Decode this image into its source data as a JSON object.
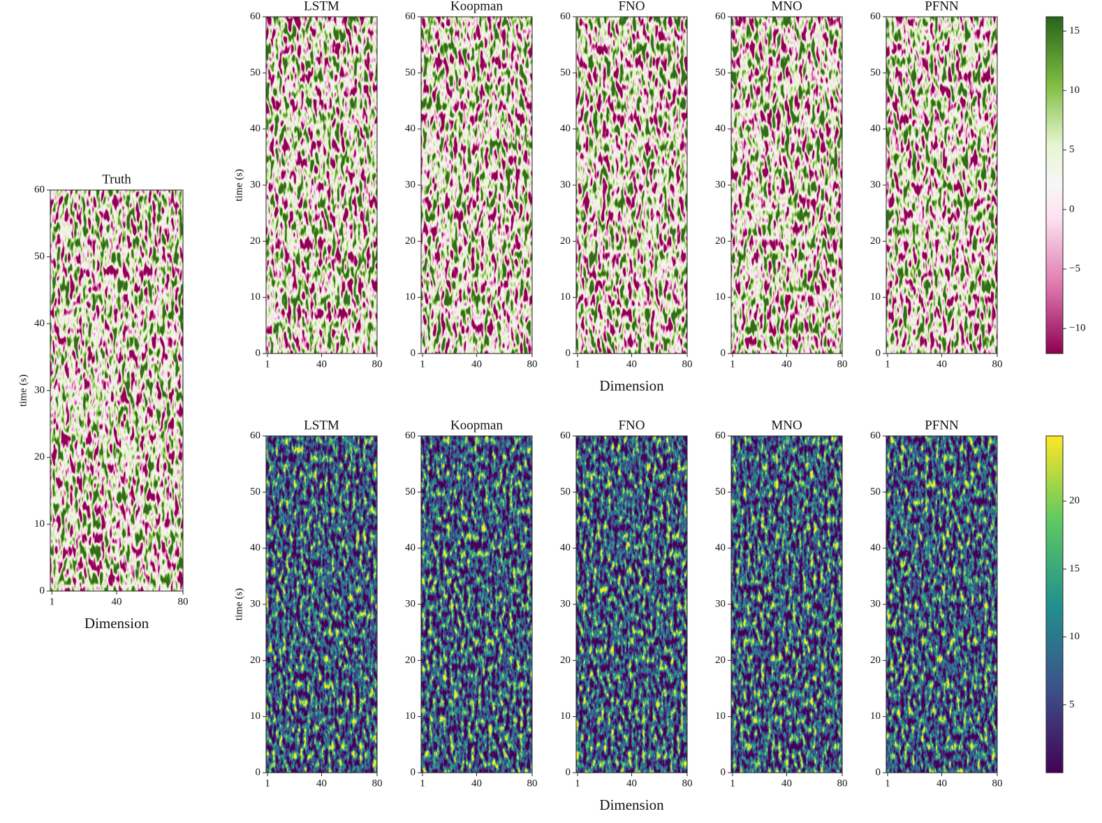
{
  "chart_data": [
    {
      "type": "heatmap",
      "title": "Truth",
      "xlabel": "Dimension",
      "ylabel": "time (s)",
      "colormap": "PiYG",
      "xlim": [
        0,
        80
      ],
      "xticks": [
        1,
        40,
        80
      ],
      "ylim": [
        0,
        60
      ],
      "yticks": [
        0,
        10,
        20,
        30,
        40,
        50,
        60
      ]
    },
    {
      "type": "heatmap",
      "title": "LSTM",
      "ylabel": "time (s)",
      "colormap": "PiYG",
      "xlim": [
        0,
        80
      ],
      "xticks": [
        1,
        40,
        80
      ],
      "ylim": [
        0,
        60
      ],
      "yticks": [
        0,
        10,
        20,
        30,
        40,
        50,
        60
      ]
    },
    {
      "type": "heatmap",
      "title": "Koopman",
      "colormap": "PiYG",
      "xlim": [
        0,
        80
      ],
      "xticks": [
        1,
        40,
        80
      ],
      "ylim": [
        0,
        60
      ],
      "yticks": [
        0,
        10,
        20,
        30,
        40,
        50,
        60
      ]
    },
    {
      "type": "heatmap",
      "title": "FNO",
      "xlabel": "Dimension",
      "colormap": "PiYG",
      "xlim": [
        0,
        80
      ],
      "xticks": [
        1,
        40,
        80
      ],
      "ylim": [
        0,
        60
      ],
      "yticks": [
        0,
        10,
        20,
        30,
        40,
        50,
        60
      ]
    },
    {
      "type": "heatmap",
      "title": "MNO",
      "colormap": "PiYG",
      "xlim": [
        0,
        80
      ],
      "xticks": [
        1,
        40,
        80
      ],
      "ylim": [
        0,
        60
      ],
      "yticks": [
        0,
        10,
        20,
        30,
        40,
        50,
        60
      ]
    },
    {
      "type": "heatmap",
      "title": "PFNN",
      "colormap": "PiYG",
      "xlim": [
        0,
        80
      ],
      "xticks": [
        1,
        40,
        80
      ],
      "ylim": [
        0,
        60
      ],
      "yticks": [
        0,
        10,
        20,
        30,
        40,
        50,
        60
      ]
    },
    {
      "type": "heatmap",
      "title": "LSTM",
      "ylabel": "time (s)",
      "colormap": "viridis",
      "xlim": [
        0,
        80
      ],
      "xticks": [
        1,
        40,
        80
      ],
      "ylim": [
        0,
        60
      ],
      "yticks": [
        0,
        10,
        20,
        30,
        40,
        50,
        60
      ]
    },
    {
      "type": "heatmap",
      "title": "Koopman",
      "colormap": "viridis",
      "xlim": [
        0,
        80
      ],
      "xticks": [
        1,
        40,
        80
      ],
      "ylim": [
        0,
        60
      ],
      "yticks": [
        0,
        10,
        20,
        30,
        40,
        50,
        60
      ]
    },
    {
      "type": "heatmap",
      "title": "FNO",
      "xlabel": "Dimension",
      "colormap": "viridis",
      "xlim": [
        0,
        80
      ],
      "xticks": [
        1,
        40,
        80
      ],
      "ylim": [
        0,
        60
      ],
      "yticks": [
        0,
        10,
        20,
        30,
        40,
        50,
        60
      ]
    },
    {
      "type": "heatmap",
      "title": "MNO",
      "colormap": "viridis",
      "xlim": [
        0,
        80
      ],
      "xticks": [
        1,
        40,
        80
      ],
      "ylim": [
        0,
        60
      ],
      "yticks": [
        0,
        10,
        20,
        30,
        40,
        50,
        60
      ]
    },
    {
      "type": "heatmap",
      "title": "PFNN",
      "colormap": "viridis",
      "xlim": [
        0,
        80
      ],
      "xticks": [
        1,
        40,
        80
      ],
      "ylim": [
        0,
        60
      ],
      "yticks": [
        0,
        10,
        20,
        30,
        40,
        50,
        60
      ]
    },
    {
      "type": "colorbar",
      "colormap": "PiYG",
      "ylim": [
        -12.1,
        16.2
      ],
      "yticks": [
        {
          "value": -10,
          "label": "−10"
        },
        {
          "value": -5,
          "label": "−5"
        },
        0,
        5,
        10,
        15
      ]
    },
    {
      "type": "colorbar",
      "colormap": "viridis",
      "ylim": [
        0,
        24.8
      ],
      "yticks": [
        5,
        10,
        15,
        20
      ]
    }
  ]
}
